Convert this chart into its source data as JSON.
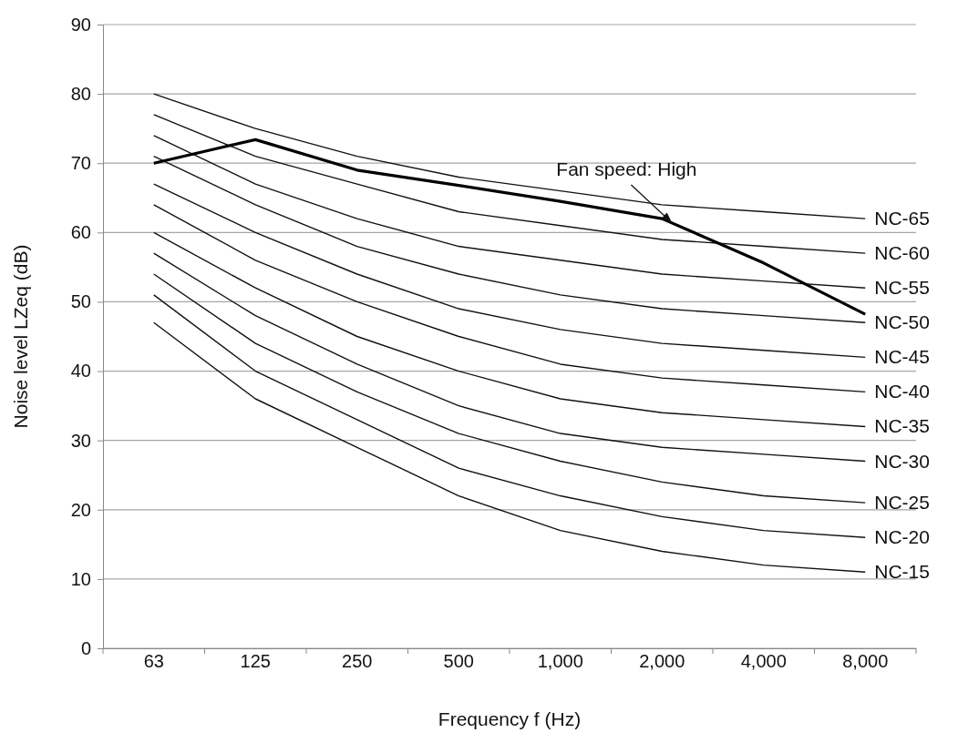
{
  "chart_data": {
    "type": "line",
    "xlabel": "Frequency f (Hz)",
    "ylabel": "Noise level LZeq (dB)",
    "categories": [
      "63",
      "125",
      "250",
      "500",
      "1,000",
      "2,000",
      "4,000",
      "8,000"
    ],
    "ylim": [
      0,
      90
    ],
    "yticks": [
      0,
      10,
      20,
      30,
      40,
      50,
      60,
      70,
      80,
      90
    ],
    "grid": "y",
    "legend": false,
    "marker": "none",
    "line_style": "solid",
    "series": [
      {
        "name": "NC-65",
        "color": "#111111",
        "values": [
          80,
          75,
          71,
          68,
          66,
          64,
          63,
          62
        ]
      },
      {
        "name": "NC-60",
        "color": "#111111",
        "values": [
          77,
          71,
          67,
          63,
          61,
          59,
          58,
          57
        ]
      },
      {
        "name": "NC-55",
        "color": "#111111",
        "values": [
          74,
          67,
          62,
          58,
          56,
          54,
          53,
          52
        ]
      },
      {
        "name": "NC-50",
        "color": "#111111",
        "values": [
          71,
          64,
          58,
          54,
          51,
          49,
          48,
          47
        ]
      },
      {
        "name": "NC-45",
        "color": "#111111",
        "values": [
          67,
          60,
          54,
          49,
          46,
          44,
          43,
          42
        ]
      },
      {
        "name": "NC-40",
        "color": "#111111",
        "values": [
          64,
          56,
          50,
          45,
          41,
          39,
          38,
          37
        ]
      },
      {
        "name": "NC-35",
        "color": "#111111",
        "values": [
          60,
          52,
          45,
          40,
          36,
          34,
          33,
          32
        ]
      },
      {
        "name": "NC-30",
        "color": "#111111",
        "values": [
          57,
          48,
          41,
          35,
          31,
          29,
          28,
          27
        ]
      },
      {
        "name": "NC-25",
        "color": "#111111",
        "values": [
          54,
          44,
          37,
          31,
          27,
          24,
          22,
          21
        ]
      },
      {
        "name": "NC-20",
        "color": "#111111",
        "values": [
          51,
          40,
          33,
          26,
          22,
          19,
          17,
          16
        ]
      },
      {
        "name": "NC-15",
        "color": "#111111",
        "values": [
          47,
          36,
          29,
          22,
          17,
          14,
          12,
          11
        ]
      },
      {
        "name": "Fan speed: High",
        "color": "#000000",
        "values": [
          70,
          73.4,
          69,
          66.8,
          64.5,
          62,
          55.6,
          48.2
        ]
      }
    ]
  }
}
